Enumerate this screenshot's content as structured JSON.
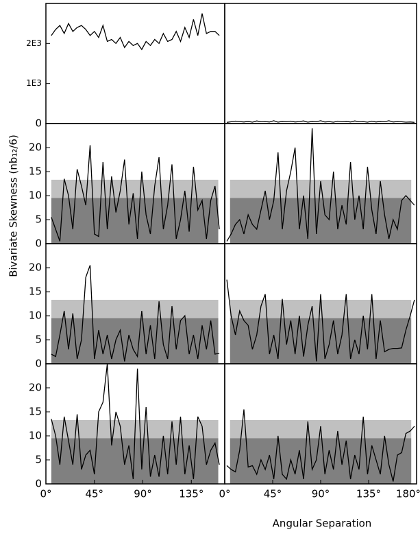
{
  "figure": {
    "ylabel": "Bivariate Skewness (nb₁₂/6)",
    "xlabel": "Angular Separation"
  },
  "chart_data": [
    {
      "type": "line",
      "color": "#000000",
      "xlim": [
        0,
        166
      ],
      "ylim": [
        0,
        3000
      ],
      "yticks": [
        0,
        {
          "value": 1000,
          "label": "1E3"
        },
        {
          "value": 2000,
          "label": "2E3"
        }
      ],
      "x": [
        5,
        9,
        13,
        17,
        21,
        25,
        29,
        33,
        37,
        41,
        45,
        49,
        53,
        57,
        61,
        65,
        69,
        73,
        77,
        81,
        85,
        89,
        93,
        97,
        101,
        105,
        109,
        113,
        117,
        121,
        125,
        129,
        133,
        137,
        141,
        145,
        149,
        153,
        157,
        161
      ],
      "values": [
        2200,
        2350,
        2450,
        2250,
        2500,
        2300,
        2400,
        2450,
        2350,
        2200,
        2300,
        2150,
        2450,
        2050,
        2100,
        2000,
        2150,
        1900,
        2050,
        1950,
        2000,
        1850,
        2050,
        1950,
        2100,
        2000,
        2250,
        2050,
        2100,
        2300,
        2050,
        2400,
        2150,
        2600,
        2200,
        2750,
        2250,
        2300,
        2300,
        2200
      ]
    },
    {
      "type": "line",
      "color": "#000000",
      "xlim": [
        0,
        180
      ],
      "ylim": [
        0,
        3000
      ],
      "x": [
        2,
        6,
        10,
        14,
        18,
        22,
        26,
        30,
        34,
        38,
        42,
        46,
        50,
        54,
        58,
        62,
        66,
        70,
        74,
        78,
        82,
        86,
        90,
        94,
        98,
        102,
        106,
        110,
        114,
        118,
        122,
        126,
        130,
        134,
        138,
        142,
        146,
        150,
        154,
        158,
        162,
        166,
        170,
        174,
        178
      ],
      "values": [
        30,
        45,
        60,
        50,
        40,
        55,
        35,
        65,
        45,
        50,
        40,
        70,
        35,
        55,
        45,
        60,
        40,
        50,
        65,
        35,
        55,
        45,
        70,
        40,
        50,
        35,
        60,
        45,
        55,
        40,
        65,
        45,
        50,
        35,
        60,
        40,
        55,
        45,
        70,
        40,
        50,
        45,
        35,
        40,
        30
      ]
    },
    {
      "type": "line",
      "color": "#000000",
      "xlim": [
        0,
        166
      ],
      "ylim": [
        0,
        25
      ],
      "yticks": [
        0,
        5,
        10,
        15,
        20
      ],
      "bands": [
        {
          "range": [
            0,
            9.5
          ],
          "color": "#808080"
        },
        {
          "range": [
            9.5,
            13.3
          ],
          "color": "#c0c0c0"
        }
      ],
      "band_x": [
        5,
        160
      ],
      "x": [
        5,
        9,
        13,
        17,
        21,
        25,
        29,
        33,
        37,
        41,
        45,
        49,
        53,
        57,
        61,
        65,
        69,
        73,
        77,
        81,
        85,
        89,
        93,
        97,
        101,
        105,
        109,
        113,
        117,
        121,
        125,
        129,
        133,
        137,
        141,
        145,
        149,
        153,
        157,
        161
      ],
      "values": [
        5.5,
        3,
        0.5,
        13.5,
        10,
        3,
        15.5,
        12,
        8,
        20.5,
        2,
        1.5,
        17,
        3,
        14,
        6.5,
        11,
        17.5,
        4,
        10.5,
        1,
        15,
        6,
        2,
        12,
        18,
        3,
        8,
        16.5,
        1,
        5,
        11,
        2.5,
        16,
        7,
        9,
        1,
        9,
        12,
        3
      ]
    },
    {
      "type": "line",
      "color": "#000000",
      "xlim": [
        0,
        180
      ],
      "ylim": [
        0,
        25
      ],
      "bands": [
        {
          "range": [
            0,
            9.5
          ],
          "color": "#808080"
        },
        {
          "range": [
            9.5,
            13.3
          ],
          "color": "#c0c0c0"
        }
      ],
      "band_x": [
        5,
        175
      ],
      "x": [
        2,
        6,
        10,
        14,
        18,
        22,
        26,
        30,
        34,
        38,
        42,
        46,
        50,
        54,
        58,
        62,
        66,
        70,
        74,
        78,
        82,
        86,
        90,
        94,
        98,
        102,
        106,
        110,
        114,
        118,
        122,
        126,
        130,
        134,
        138,
        142,
        146,
        150,
        154,
        158,
        162,
        166,
        170,
        174,
        178
      ],
      "values": [
        0.5,
        2,
        4,
        5,
        2,
        6,
        4,
        3,
        7,
        11,
        5,
        9,
        19,
        3,
        11,
        15,
        20,
        3,
        10,
        1,
        24,
        2,
        13,
        6,
        5,
        15,
        3,
        8,
        4,
        17,
        5,
        10,
        3,
        16,
        7,
        2,
        13,
        6,
        1,
        5,
        3,
        9,
        10,
        9,
        8
      ]
    },
    {
      "type": "line",
      "color": "#000000",
      "xlim": [
        0,
        166
      ],
      "ylim": [
        0,
        25
      ],
      "yticks": [
        0,
        5,
        10,
        15,
        20
      ],
      "bands": [
        {
          "range": [
            0,
            9.5
          ],
          "color": "#808080"
        },
        {
          "range": [
            9.5,
            13.3
          ],
          "color": "#c0c0c0"
        }
      ],
      "band_x": [
        5,
        160
      ],
      "x": [
        5,
        9,
        13,
        17,
        21,
        25,
        29,
        33,
        37,
        41,
        45,
        49,
        53,
        57,
        61,
        65,
        69,
        73,
        77,
        81,
        85,
        89,
        93,
        97,
        101,
        105,
        109,
        113,
        117,
        121,
        125,
        129,
        133,
        137,
        141,
        145,
        149,
        153,
        157,
        161
      ],
      "values": [
        2,
        1.5,
        6,
        11,
        3,
        10.5,
        1,
        5,
        18,
        20.5,
        1,
        7,
        2,
        6,
        1,
        5,
        7,
        0.5,
        6,
        3,
        1.5,
        11,
        2,
        8,
        1,
        13,
        4,
        1,
        12,
        3,
        9,
        10,
        2,
        6,
        1,
        8,
        3,
        9,
        2,
        2.2
      ]
    },
    {
      "type": "line",
      "color": "#000000",
      "xlim": [
        0,
        180
      ],
      "ylim": [
        0,
        25
      ],
      "bands": [
        {
          "range": [
            0,
            9.5
          ],
          "color": "#808080"
        },
        {
          "range": [
            9.5,
            13.3
          ],
          "color": "#c0c0c0"
        }
      ],
      "band_x": [
        5,
        175
      ],
      "x": [
        2,
        6,
        10,
        14,
        18,
        22,
        26,
        30,
        34,
        38,
        42,
        46,
        50,
        54,
        58,
        62,
        66,
        70,
        74,
        78,
        82,
        86,
        90,
        94,
        98,
        102,
        106,
        110,
        114,
        118,
        122,
        126,
        130,
        134,
        138,
        142,
        146,
        150,
        154,
        158,
        162,
        166,
        170,
        174,
        178
      ],
      "values": [
        17.5,
        10,
        6,
        11,
        9,
        8,
        3,
        6,
        12,
        14.5,
        2,
        6,
        1,
        13.5,
        4,
        9,
        2,
        10,
        1.5,
        8,
        12,
        0.5,
        14.5,
        1,
        4,
        9,
        2,
        6,
        14.5,
        1,
        5,
        2,
        10,
        3,
        14.5,
        1,
        9,
        2.5,
        3,
        3.2,
        3.2,
        3.3,
        7,
        10,
        13.3
      ]
    },
    {
      "type": "line",
      "color": "#000000",
      "xlim": [
        0,
        166
      ],
      "ylim": [
        0,
        25
      ],
      "yticks": [
        0,
        5,
        10,
        15,
        20
      ],
      "xticks": [
        {
          "value": 0,
          "label": "0°"
        },
        {
          "value": 45,
          "label": "45°"
        },
        {
          "value": 90,
          "label": "90°"
        },
        {
          "value": 135,
          "label": "135°"
        }
      ],
      "bands": [
        {
          "range": [
            0,
            9.5
          ],
          "color": "#808080"
        },
        {
          "range": [
            9.5,
            13.3
          ],
          "color": "#c0c0c0"
        }
      ],
      "band_x": [
        5,
        160
      ],
      "x": [
        5,
        9,
        13,
        17,
        21,
        25,
        29,
        33,
        37,
        41,
        45,
        49,
        53,
        57,
        61,
        65,
        69,
        73,
        77,
        81,
        85,
        89,
        93,
        97,
        101,
        105,
        109,
        113,
        117,
        121,
        125,
        129,
        133,
        137,
        141,
        145,
        149,
        153,
        157,
        161
      ],
      "values": [
        13.5,
        10,
        4,
        14,
        9,
        4,
        14.5,
        3,
        6,
        7,
        2,
        15,
        17,
        25,
        8,
        15,
        12,
        4,
        8,
        1,
        24,
        3,
        16,
        1.5,
        6,
        1.5,
        10,
        2,
        13,
        4,
        14,
        2,
        8,
        1,
        14,
        12,
        4,
        7,
        8.5,
        4
      ]
    },
    {
      "type": "line",
      "color": "#000000",
      "xlim": [
        0,
        180
      ],
      "ylim": [
        0,
        25
      ],
      "xticks": [
        {
          "value": 0,
          "label": "0°"
        },
        {
          "value": 45,
          "label": "45°"
        },
        {
          "value": 90,
          "label": "90°"
        },
        {
          "value": 135,
          "label": "135°"
        },
        {
          "value": 180,
          "label": "180°"
        }
      ],
      "bands": [
        {
          "range": [
            0,
            9.5
          ],
          "color": "#808080"
        },
        {
          "range": [
            9.5,
            13.3
          ],
          "color": "#c0c0c0"
        }
      ],
      "band_x": [
        5,
        175
      ],
      "x": [
        2,
        6,
        10,
        14,
        18,
        22,
        26,
        30,
        34,
        38,
        42,
        46,
        50,
        54,
        58,
        62,
        66,
        70,
        74,
        78,
        82,
        86,
        90,
        94,
        98,
        102,
        106,
        110,
        114,
        118,
        122,
        126,
        130,
        134,
        138,
        142,
        146,
        150,
        154,
        158,
        162,
        166,
        170,
        174,
        178
      ],
      "values": [
        3.8,
        3,
        2.5,
        7,
        15.5,
        3.5,
        3.8,
        2,
        5,
        3,
        6,
        1,
        10,
        2,
        1,
        5,
        2,
        7,
        1,
        13,
        3,
        5,
        12,
        2,
        7,
        3,
        11,
        4,
        9,
        1,
        6,
        3,
        14,
        2,
        8,
        5,
        2,
        10,
        4,
        0.5,
        6,
        6.5,
        10.5,
        11,
        12
      ]
    }
  ]
}
